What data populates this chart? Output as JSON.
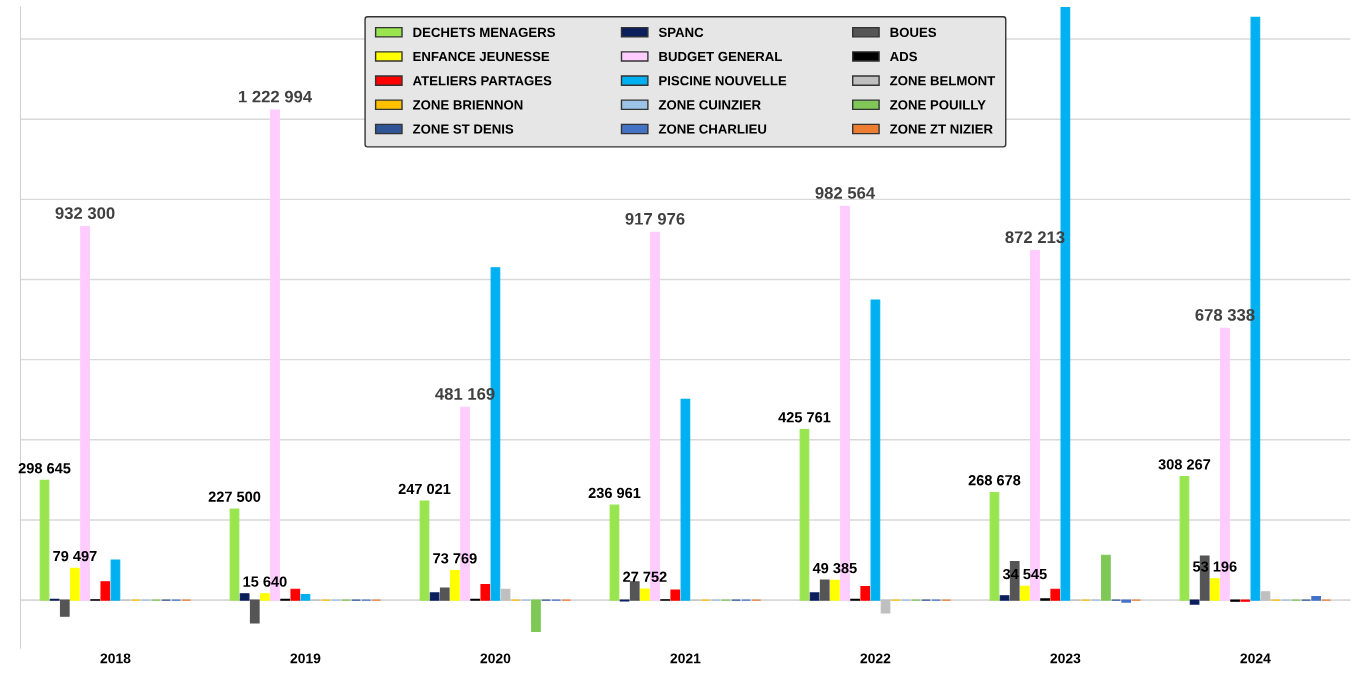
{
  "chart_data": {
    "type": "bar",
    "categories": [
      "2018",
      "2019",
      "2020",
      "2021",
      "2022",
      "2023",
      "2024"
    ],
    "ylim": [
      -120000,
      1480000
    ],
    "yticks": [
      {
        "value": 0,
        "label": null
      },
      {
        "value": 200000,
        "label": null
      },
      {
        "value": 400000,
        "label": null
      },
      {
        "value": 600000,
        "label": null
      },
      {
        "value": 800000,
        "label": null
      },
      {
        "value": 1000000,
        "label": null
      },
      {
        "value": 1200000,
        "label": null
      },
      {
        "value": 1400000,
        "label": null
      }
    ],
    "grid": "y",
    "legend": "top",
    "tick_labels": "x",
    "series": [
      {
        "name": "DECHETS MENAGERS",
        "color": "#99e550",
        "values": [
          298645,
          227500,
          247021,
          236961,
          425761,
          268678,
          308267
        ],
        "value_labels": [
          "298 645",
          "227 500",
          "247 021",
          "236 961",
          "425 761",
          "268 678",
          "308 267"
        ]
      },
      {
        "name": "SPANC",
        "color": "#0b1f5c",
        "values": [
          2000,
          16000,
          18000,
          -2000,
          18000,
          11000,
          -10000
        ]
      },
      {
        "name": "BOUES",
        "color": "#555555",
        "values": [
          -40000,
          -57000,
          30000,
          46000,
          50000,
          96000,
          110000
        ]
      },
      {
        "name": "ENFANCE JEUNESSE",
        "color": "#ffff00",
        "values": [
          79497,
          15640,
          73769,
          27752,
          49385,
          34545,
          53196
        ],
        "value_labels": [
          "79 497",
          "15 640",
          "73 769",
          "27 752",
          "49 385",
          "34 545",
          "53 196"
        ]
      },
      {
        "name": "BUDGET GENERAL",
        "color": "#ffccff",
        "values": [
          932300,
          1222994,
          481169,
          917976,
          982564,
          872213,
          678338
        ],
        "value_labels": [
          "932 300",
          "1 222 994",
          "481 169",
          "917 976",
          "982 564",
          "872 213",
          "678 338"
        ]
      },
      {
        "name": "ADS",
        "color": "#000000",
        "values": [
          1000,
          2000,
          2000,
          1000,
          2000,
          3000,
          -3000
        ]
      },
      {
        "name": "ATELIERS PARTAGES",
        "color": "#ff0000",
        "values": [
          46000,
          27000,
          39000,
          25000,
          34000,
          27000,
          -3000
        ]
      },
      {
        "name": "PISCINE NOUVELLE",
        "color": "#00b0f0",
        "values": [
          100000,
          14000,
          829000,
          501000,
          749000,
          1480000,
          1454000
        ]
      },
      {
        "name": "ZONE BELMONT",
        "color": "#bfbfbf",
        "values": [
          0,
          0,
          27000,
          0,
          -32000,
          0,
          21000
        ]
      },
      {
        "name": "ZONE BRIENNON",
        "color": "#ffc000",
        "values": [
          0,
          0,
          0,
          0,
          0,
          0,
          0
        ]
      },
      {
        "name": "ZONE CUINZIER",
        "color": "#9dc3e6",
        "values": [
          0,
          0,
          0,
          0,
          0,
          0,
          0
        ]
      },
      {
        "name": "ZONE POUILLY",
        "color": "#7fc857",
        "values": [
          0,
          0,
          -78000,
          0,
          0,
          112000,
          0
        ]
      },
      {
        "name": "ZONE ST DENIS",
        "color": "#2f5597",
        "values": [
          0,
          0,
          0,
          0,
          0,
          0,
          0
        ]
      },
      {
        "name": "ZONE CHARLIEU",
        "color": "#4472c4",
        "values": [
          0,
          0,
          0,
          0,
          0,
          -5000,
          9000
        ]
      },
      {
        "name": "ZONE ZT NIZIER",
        "color": "#ed7d31",
        "values": [
          0,
          0,
          0,
          0,
          0,
          0,
          0
        ]
      }
    ]
  }
}
